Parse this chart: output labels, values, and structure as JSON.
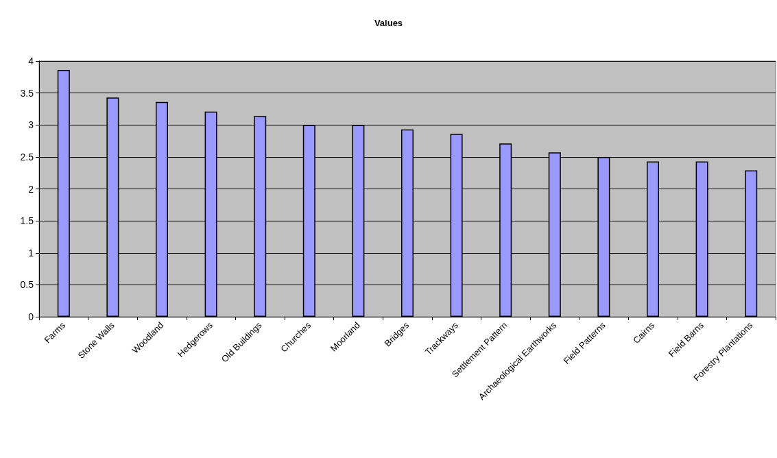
{
  "chart_data": {
    "type": "bar",
    "title": "Values",
    "categories": [
      "Farms",
      "Stone Walls",
      "Woodland",
      "Hedgerows",
      "Old Buildings",
      "Churches",
      "Moorland",
      "Bridges",
      "Trackways",
      "Settlement Pattern",
      "Archaeological Earthworks",
      "Field Patterns",
      "Cairns",
      "Field Barns",
      "Forestry Plantations"
    ],
    "values": [
      3.86,
      3.43,
      3.36,
      3.21,
      3.14,
      3,
      3,
      2.93,
      2.86,
      2.71,
      2.57,
      2.5,
      2.43,
      2.43,
      2.29
    ],
    "color": "#9999ff",
    "ylim": [
      0,
      4
    ],
    "yticks": [
      0,
      0.5,
      1,
      1.5,
      2,
      2.5,
      3,
      3.5,
      4
    ],
    "grid": true
  }
}
